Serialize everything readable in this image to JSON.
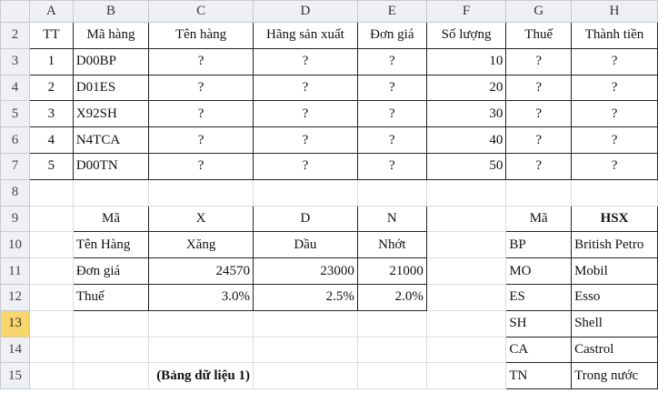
{
  "columns": [
    "A",
    "B",
    "C",
    "D",
    "E",
    "F",
    "G",
    "H"
  ],
  "selected_row": "13",
  "rows": [
    {
      "n": "2",
      "cells": [
        "TT",
        "Mã hàng",
        "Tên hàng",
        "Hãng sản xuất",
        "Đơn giá",
        "Số lượng",
        "Thuế",
        "Thành tiền"
      ]
    },
    {
      "n": "3",
      "cells": [
        "1",
        "D00BP",
        "?",
        "?",
        "?",
        "10",
        "?",
        "?"
      ]
    },
    {
      "n": "4",
      "cells": [
        "2",
        "D01ES",
        "?",
        "?",
        "?",
        "20",
        "?",
        "?"
      ]
    },
    {
      "n": "5",
      "cells": [
        "3",
        "X92SH",
        "?",
        "?",
        "?",
        "30",
        "?",
        "?"
      ]
    },
    {
      "n": "6",
      "cells": [
        "4",
        "N4TCA",
        "?",
        "?",
        "?",
        "40",
        "?",
        "?"
      ]
    },
    {
      "n": "7",
      "cells": [
        "5",
        "D00TN",
        "?",
        "?",
        "?",
        "50",
        "?",
        "?"
      ]
    },
    {
      "n": "8",
      "cells": [
        "",
        "",
        "",
        "",
        "",
        "",
        "",
        ""
      ]
    },
    {
      "n": "9",
      "cells": [
        "",
        "Mã",
        "X",
        "D",
        "N",
        "",
        "Mã",
        "HSX"
      ]
    },
    {
      "n": "10",
      "cells": [
        "",
        "Tên Hàng",
        "Xăng",
        "Dầu",
        "Nhớt",
        "",
        "BP",
        "British Petro"
      ]
    },
    {
      "n": "11",
      "cells": [
        "",
        "Đơn giá",
        "24570",
        "23000",
        "21000",
        "",
        "MO",
        "Mobil"
      ]
    },
    {
      "n": "12",
      "cells": [
        "",
        "Thuế",
        "3.0%",
        "2.5%",
        "2.0%",
        "",
        "ES",
        "Esso"
      ]
    },
    {
      "n": "13",
      "cells": [
        "",
        "",
        "",
        "",
        "",
        "",
        "SH",
        "Shell"
      ]
    },
    {
      "n": "14",
      "cells": [
        "",
        "",
        "",
        "",
        "",
        "",
        "CA",
        "Castrol"
      ]
    },
    {
      "n": "15",
      "cells": [
        "",
        "",
        "(Bảng dữ liệu 1)",
        "",
        "",
        "",
        "TN",
        "Trong nước"
      ]
    }
  ]
}
